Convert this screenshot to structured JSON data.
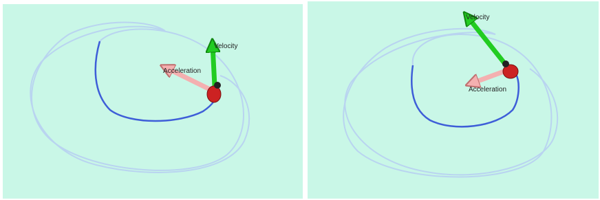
{
  "panels": [
    {
      "labels": {
        "velocity": "Velocity",
        "acceleration": "Acceleration"
      }
    },
    {
      "labels": {
        "velocity": "Velocity",
        "acceleration": "Acceleration"
      }
    }
  ]
}
